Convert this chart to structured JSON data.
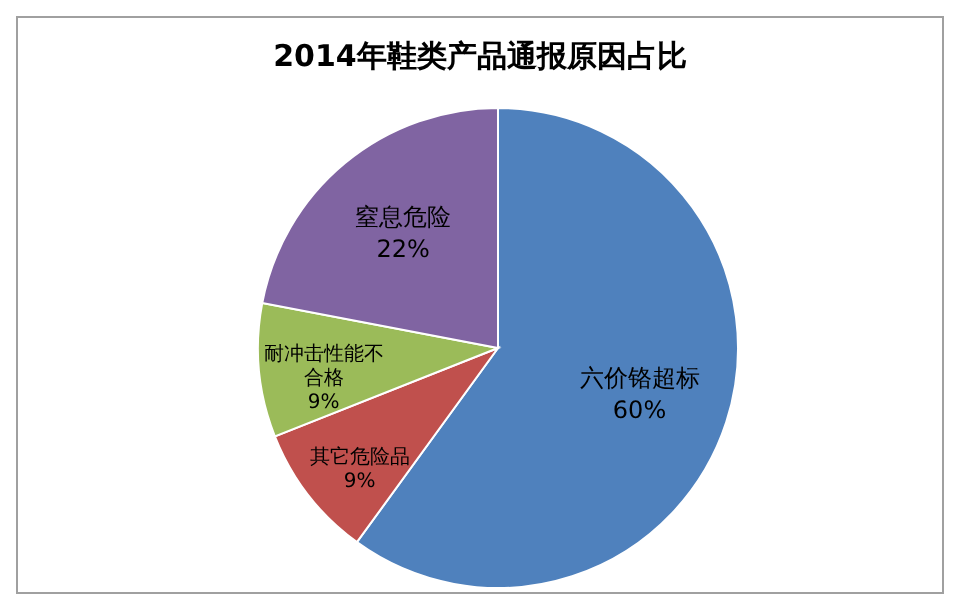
{
  "chart_data": {
    "type": "pie",
    "title": "2014年鞋类产品通报原因占比",
    "categories": [
      "六价铬超标",
      "其它危险品",
      "耐冲击性能不合格",
      "窒息危险"
    ],
    "values": [
      60,
      9,
      9,
      22
    ],
    "colors": [
      "#4f81bd",
      "#c0504d",
      "#9bbb59",
      "#8064a2"
    ],
    "value_labels": [
      "60%",
      "9%",
      "9%",
      "22%"
    ],
    "legend": false
  }
}
